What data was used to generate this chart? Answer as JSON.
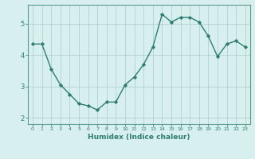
{
  "xlabel": "Humidex (Indice chaleur)",
  "ylabel": "",
  "x": [
    0,
    1,
    2,
    3,
    4,
    5,
    6,
    7,
    8,
    9,
    10,
    11,
    12,
    13,
    14,
    15,
    16,
    17,
    18,
    19,
    20,
    21,
    22,
    23
  ],
  "y": [
    4.35,
    4.35,
    3.55,
    3.05,
    2.75,
    2.45,
    2.38,
    2.25,
    2.5,
    2.5,
    3.05,
    3.3,
    3.7,
    4.25,
    5.3,
    5.05,
    5.2,
    5.2,
    5.05,
    4.6,
    3.95,
    4.35,
    4.45,
    4.25
  ],
  "line_color": "#2e7d6e",
  "marker": "D",
  "marker_size": 2.2,
  "background_color": "#d8eff0",
  "grid_color": "#b0d0d0",
  "axis_color": "#5a9a8a",
  "tick_color": "#2e7d6e",
  "ylim": [
    1.8,
    5.6
  ],
  "xlim": [
    -0.5,
    23.5
  ],
  "yticks": [
    2,
    3,
    4,
    5
  ],
  "xticks": [
    0,
    1,
    2,
    3,
    4,
    5,
    6,
    7,
    8,
    9,
    10,
    11,
    12,
    13,
    14,
    15,
    16,
    17,
    18,
    19,
    20,
    21,
    22,
    23
  ]
}
